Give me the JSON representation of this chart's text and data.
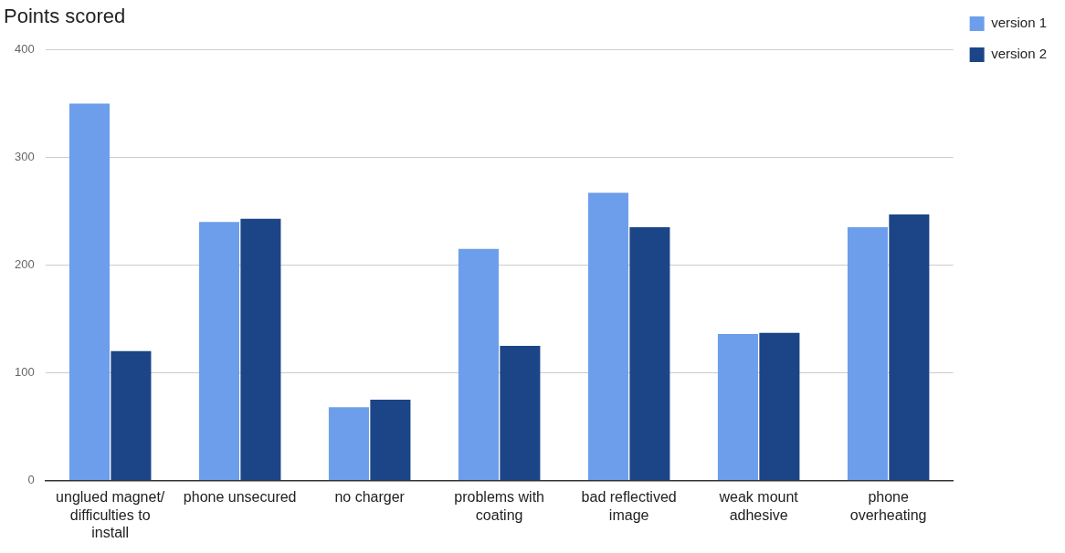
{
  "chart_data": {
    "type": "bar",
    "title": "Points scored",
    "categories": [
      "unglued magnet/ difficulties to install",
      "phone unsecured",
      "no charger",
      "problems with coating",
      "bad reflectived image",
      "weak mount adhesive",
      "phone overheating"
    ],
    "series": [
      {
        "name": "version 1",
        "color": "#6d9eeb",
        "values": [
          350,
          240,
          68,
          215,
          267,
          136,
          235
        ]
      },
      {
        "name": "version 2",
        "color": "#1c4587",
        "values": [
          120,
          243,
          75,
          125,
          235,
          137,
          247
        ]
      }
    ],
    "ylim": [
      0,
      400
    ],
    "yticks": [
      0,
      100,
      200,
      300,
      400
    ],
    "grid": "y",
    "legend": "top right"
  }
}
